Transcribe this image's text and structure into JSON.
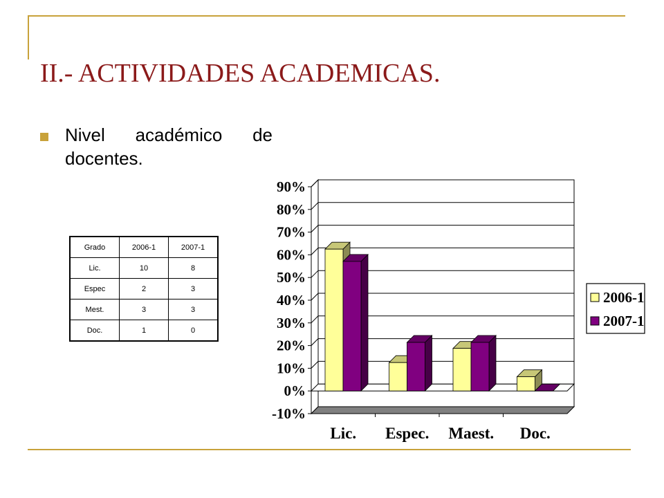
{
  "slide": {
    "title": "II.- ACTIVIDADES ACADEMICAS.",
    "bullet": "Nivel académico de docentes."
  },
  "table": {
    "headers": [
      "Grado",
      "2006-1",
      "2007-1"
    ],
    "rows": [
      [
        "Lic.",
        "10",
        "8"
      ],
      [
        "Espec",
        "2",
        "3"
      ],
      [
        "Mest.",
        "3",
        "3"
      ],
      [
        "Doc.",
        "1",
        "0"
      ]
    ]
  },
  "colors": {
    "accent": "#c8a23a",
    "title": "#8b1a1a",
    "series_2006": "#ffff99",
    "series_2007": "#800080",
    "floor": "#808080"
  },
  "chart_data": {
    "type": "bar",
    "title": "",
    "xlabel": "",
    "ylabel": "",
    "categories": [
      "Lic.",
      "Espec.",
      "Maest.",
      "Doc."
    ],
    "series": [
      {
        "name": "2006-1",
        "values": [
          62.5,
          12.5,
          18.75,
          6.25
        ]
      },
      {
        "name": "2007-1",
        "values": [
          57.1,
          21.4,
          21.4,
          0
        ]
      }
    ],
    "yticks": [
      "90%",
      "80%",
      "70%",
      "60%",
      "50%",
      "40%",
      "30%",
      "20%",
      "10%",
      "0%",
      "-10%"
    ],
    "ylim": [
      -10,
      90
    ],
    "grid": true,
    "legend": "right",
    "style": "3d"
  }
}
